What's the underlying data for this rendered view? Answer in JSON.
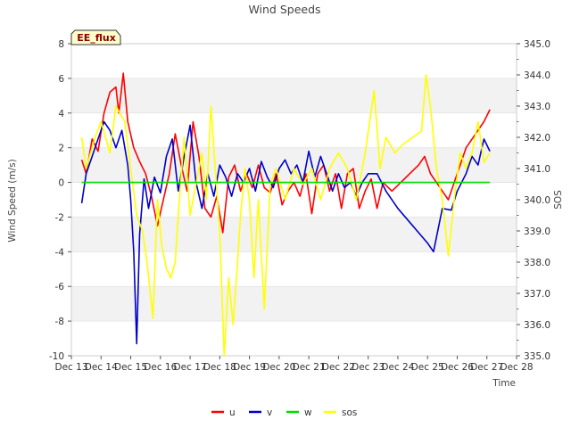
{
  "chart_data": {
    "type": "line",
    "title": "Wind Speeds",
    "annotation": "EE_flux",
    "xlabel": "Time",
    "ylabel_left": "Wind Speed (m/s)",
    "ylabel_right": "SOS",
    "x_range_days": [
      13,
      28
    ],
    "x_tick_labels": [
      "Dec 13",
      "Dec 14",
      "Dec 15",
      "Dec 16",
      "Dec 17",
      "Dec 18",
      "Dec 19",
      "Dec 20",
      "Dec 21",
      "Dec 22",
      "Dec 23",
      "Dec 24",
      "Dec 25",
      "Dec 26",
      "Dec 27",
      "Dec 28"
    ],
    "ylim_left": [
      -10,
      8
    ],
    "y_tick_labels_left": [
      "-10",
      "-8",
      "-6",
      "-4",
      "-2",
      "0",
      "2",
      "4",
      "6",
      "8"
    ],
    "ylim_right": [
      335.0,
      345.0
    ],
    "y_tick_labels_right": [
      "335.0",
      "336.0",
      "337.0",
      "338.0",
      "339.0",
      "340.0",
      "341.0",
      "342.0",
      "343.0",
      "344.0",
      "345.0"
    ],
    "grid": "horizontal bands",
    "legend": [
      "u",
      "v",
      "w",
      "sos"
    ],
    "series": [
      {
        "name": "u",
        "color": "#ff0000",
        "axis": "left",
        "x": [
          13.35,
          13.5,
          13.7,
          13.9,
          14.1,
          14.3,
          14.5,
          14.6,
          14.75,
          14.9,
          15.1,
          15.3,
          15.5,
          15.7,
          15.9,
          16.1,
          16.3,
          16.5,
          16.7,
          16.9,
          17.1,
          17.3,
          17.5,
          17.7,
          17.9,
          18.1,
          18.3,
          18.5,
          18.7,
          18.9,
          19.1,
          19.3,
          19.5,
          19.7,
          19.9,
          20.1,
          20.3,
          20.5,
          20.7,
          20.9,
          21.1,
          21.3,
          21.5,
          21.7,
          21.9,
          22.1,
          22.3,
          22.5,
          22.7,
          22.9,
          23.1,
          23.3,
          23.5,
          23.8,
          24.1,
          24.4,
          24.7,
          24.9,
          25.1,
          25.3,
          25.5,
          25.7,
          25.9,
          26.1,
          26.3,
          26.5,
          26.7,
          26.9,
          27.1
        ],
        "values": [
          1.3,
          0.5,
          2.5,
          1.8,
          4.0,
          5.2,
          5.5,
          4.0,
          6.3,
          3.5,
          2.0,
          1.2,
          0.5,
          -0.8,
          -2.5,
          -1.0,
          0.5,
          2.8,
          1.0,
          -0.5,
          3.5,
          1.5,
          -1.5,
          -2.0,
          -0.8,
          -2.9,
          0.3,
          1.0,
          -0.5,
          0.5,
          -0.3,
          1.0,
          -0.3,
          -0.6,
          0.5,
          -1.3,
          -0.5,
          0.0,
          -0.8,
          0.5,
          -1.8,
          0.5,
          1.0,
          -0.5,
          0.5,
          -1.5,
          0.5,
          0.8,
          -1.5,
          -0.5,
          0.2,
          -1.5,
          0.0,
          -0.5,
          0.0,
          0.5,
          1.0,
          1.5,
          0.5,
          0.0,
          -0.5,
          -1.0,
          0.0,
          1.0,
          2.0,
          2.5,
          3.0,
          3.5,
          4.2
        ]
      },
      {
        "name": "v",
        "color": "#0000cc",
        "axis": "left",
        "x": [
          13.35,
          13.5,
          13.7,
          13.9,
          14.1,
          14.3,
          14.5,
          14.7,
          14.9,
          15.0,
          15.1,
          15.2,
          15.3,
          15.45,
          15.6,
          15.8,
          16.0,
          16.2,
          16.4,
          16.6,
          16.8,
          17.0,
          17.2,
          17.4,
          17.6,
          17.8,
          18.0,
          18.2,
          18.4,
          18.6,
          18.8,
          19.0,
          19.2,
          19.4,
          19.6,
          19.8,
          20.0,
          20.2,
          20.4,
          20.6,
          20.8,
          21.0,
          21.2,
          21.4,
          21.6,
          21.8,
          22.0,
          22.2,
          22.4,
          22.6,
          22.8,
          23.0,
          23.3,
          23.6,
          24.0,
          24.5,
          25.0,
          25.2,
          25.5,
          25.8,
          26.0,
          26.3,
          26.5,
          26.7,
          26.9,
          27.1
        ],
        "values": [
          -1.2,
          0.5,
          1.5,
          2.5,
          3.5,
          3.0,
          2.0,
          3.0,
          1.0,
          -1.0,
          -4.0,
          -9.3,
          -3.0,
          0.2,
          -1.5,
          0.3,
          -0.6,
          1.5,
          2.5,
          -0.5,
          1.5,
          3.3,
          0.0,
          -1.5,
          0.5,
          -0.8,
          1.0,
          0.3,
          -0.8,
          0.5,
          0.0,
          0.8,
          -0.5,
          1.2,
          0.3,
          -0.3,
          0.8,
          1.3,
          0.5,
          1.0,
          0.0,
          1.8,
          0.3,
          1.5,
          0.5,
          -0.5,
          0.5,
          -0.3,
          0.0,
          -0.8,
          0.0,
          0.5,
          0.5,
          -0.5,
          -1.5,
          -2.5,
          -3.5,
          -4.0,
          -1.5,
          -1.6,
          -0.5,
          0.5,
          1.5,
          1.0,
          2.5,
          1.8
        ]
      },
      {
        "name": "w",
        "color": "#00dd00",
        "axis": "left",
        "x": [
          13.35,
          14.0,
          15.0,
          16.0,
          17.0,
          18.0,
          19.0,
          20.0,
          21.0,
          22.0,
          23.0,
          24.0,
          25.0,
          26.0,
          27.0,
          27.1
        ],
        "values": [
          0.0,
          0.0,
          0.0,
          0.0,
          0.0,
          0.0,
          0.0,
          0.0,
          0.0,
          0.0,
          0.0,
          0.0,
          0.0,
          0.0,
          0.0,
          0.0
        ]
      },
      {
        "name": "sos",
        "color": "#ffff00",
        "axis": "right",
        "x": [
          13.35,
          13.5,
          13.8,
          14.0,
          14.3,
          14.5,
          14.8,
          15.0,
          15.2,
          15.4,
          15.55,
          15.75,
          15.9,
          16.05,
          16.2,
          16.35,
          16.5,
          16.6,
          16.8,
          17.0,
          17.2,
          17.4,
          17.55,
          17.7,
          17.85,
          18.0,
          18.15,
          18.3,
          18.45,
          18.6,
          18.7,
          18.85,
          19.0,
          19.15,
          19.3,
          19.5,
          19.7,
          19.9,
          20.2,
          20.5,
          20.8,
          21.1,
          21.4,
          21.7,
          22.0,
          22.3,
          22.6,
          22.9,
          23.2,
          23.4,
          23.6,
          23.9,
          24.2,
          24.5,
          24.8,
          24.95,
          25.1,
          25.3,
          25.5,
          25.7,
          25.9,
          26.1,
          26.3,
          26.5,
          26.7,
          26.9,
          27.1
        ],
        "values": [
          342.0,
          341.0,
          342.0,
          342.5,
          341.5,
          343.0,
          342.5,
          341.0,
          339.5,
          339.0,
          338.0,
          336.2,
          340.0,
          338.5,
          337.8,
          337.5,
          338.0,
          339.5,
          342.0,
          339.5,
          340.5,
          341.5,
          340.0,
          343.0,
          341.0,
          339.0,
          335.0,
          337.5,
          336.0,
          338.0,
          339.5,
          341.0,
          340.0,
          337.5,
          340.0,
          336.5,
          340.5,
          341.0,
          340.0,
          341.0,
          340.5,
          341.0,
          340.0,
          341.0,
          341.5,
          341.0,
          340.0,
          341.5,
          343.5,
          341.0,
          342.0,
          341.5,
          341.8,
          342.0,
          342.2,
          344.0,
          343.0,
          341.0,
          340.0,
          338.2,
          340.0,
          341.5,
          341.0,
          341.5,
          342.5,
          341.2,
          341.5
        ]
      }
    ]
  }
}
